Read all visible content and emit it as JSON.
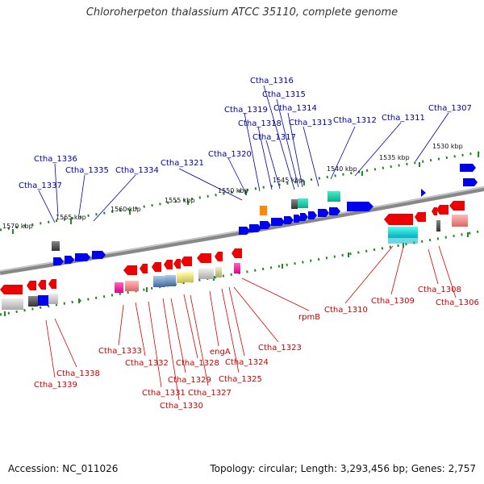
{
  "title": "Chloroherpeton thalassium ATCC 35110, complete genome",
  "accession": "Accession: NC_011026",
  "summary": "Topology: circular; Length: 3,293,456 bp; Genes: 2,757",
  "colors": {
    "forward": "#0000ee",
    "reverse": "#ee0000",
    "backbone": "#808080",
    "tick": "#228822"
  },
  "kbp_ticks": [
    "1530 kbp",
    "1535 kbp",
    "1540 kbp",
    "1545 kbp",
    "1550 kbp",
    "1555 kbp",
    "1560 kbp",
    "1565 kbp",
    "1570 kbp"
  ],
  "upper_labels": [
    "Ctha_1316",
    "Ctha_1315",
    "Ctha_1314",
    "Ctha_1319",
    "Ctha_1318",
    "Ctha_1313",
    "Ctha_1312",
    "Ctha_1311",
    "Ctha_1307",
    "Ctha_1317",
    "Ctha_1320",
    "Ctha_1321",
    "Ctha_1336",
    "Ctha_1335",
    "Ctha_1334",
    "Ctha_1337"
  ],
  "lower_labels": [
    "rpmB",
    "Ctha_1310",
    "Ctha_1309",
    "Ctha_1308",
    "Ctha_1306",
    "Ctha_1323",
    "Ctha_1324",
    "engA",
    "Ctha_1325",
    "Ctha_1333",
    "Ctha_1332",
    "Ctha_1328",
    "Ctha_1329",
    "Ctha_1327",
    "Ctha_1331",
    "Ctha_1330",
    "Ctha_1338",
    "Ctha_1339"
  ]
}
